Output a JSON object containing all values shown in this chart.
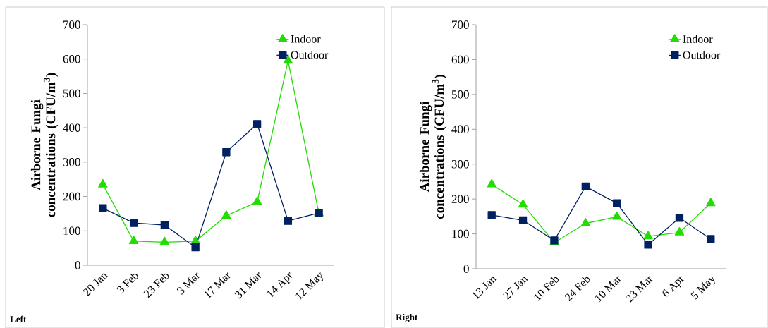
{
  "chart_data": [
    {
      "type": "line",
      "ylabel": "Airborne Fungi concentrations (CFU/m$^{3}$)",
      "annotations": [
        "Left"
      ],
      "categories": [
        "20 Jan",
        "3 Feb",
        "23 Feb",
        "3 Mar",
        "17 Mar",
        "31 Mar",
        "14 Apr",
        "12 May"
      ],
      "series": [
        {
          "name": "Indoor",
          "color": "#22dd00",
          "marker": "triangle",
          "values": [
            235,
            70,
            67,
            70,
            144,
            184,
            595,
            151
          ]
        },
        {
          "name": "Outdoor",
          "color": "#002060",
          "marker": "square",
          "values": [
            166,
            123,
            117,
            52,
            329,
            411,
            129,
            152
          ]
        }
      ],
      "ylim": [
        0,
        700
      ],
      "yticks": [
        0,
        100,
        200,
        300,
        400,
        500,
        600,
        700
      ],
      "grid": false,
      "legend": "top right"
    },
    {
      "type": "line",
      "ylabel": "Airborne Fungi concentrations (CFU/m$^{3}$)",
      "annotations": [
        "Right"
      ],
      "categories": [
        "13 Jan",
        "27 Jan",
        "10 Feb",
        "24 Feb",
        "10 Mar",
        "23 Mar",
        "6 Apr",
        "5 May"
      ],
      "series": [
        {
          "name": "Indoor",
          "color": "#22dd00",
          "marker": "triangle",
          "values": [
            242,
            184,
            75,
            130,
            149,
            93,
            104,
            188
          ]
        },
        {
          "name": "Outdoor",
          "color": "#002060",
          "marker": "square",
          "values": [
            154,
            139,
            81,
            236,
            188,
            69,
            146,
            85
          ]
        }
      ],
      "ylim": [
        0,
        700
      ],
      "yticks": [
        0,
        100,
        200,
        300,
        400,
        500,
        600,
        700
      ],
      "grid": false,
      "legend": "top right"
    }
  ]
}
